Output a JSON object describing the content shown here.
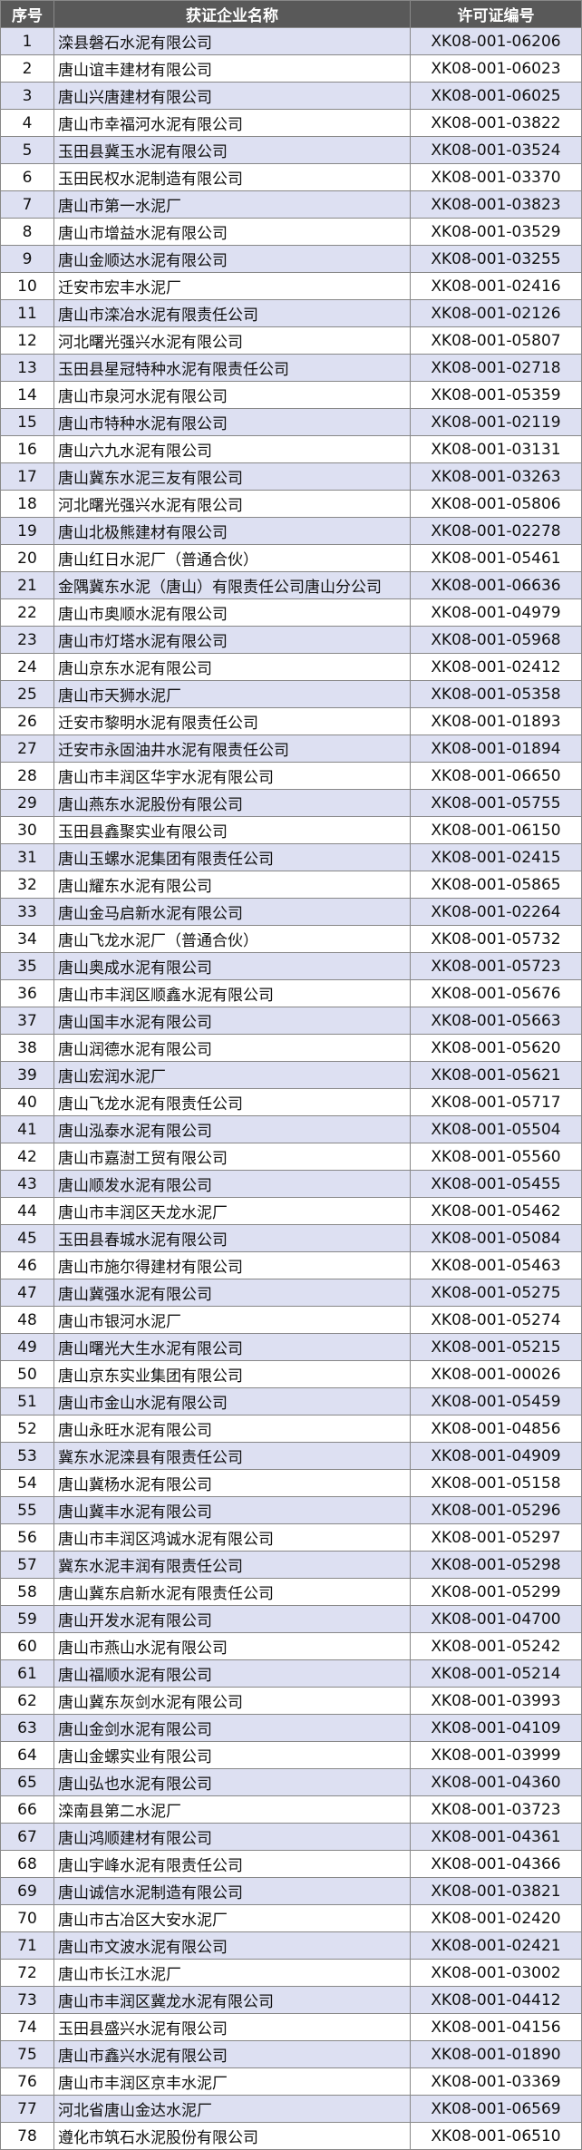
{
  "table": {
    "header": [
      "序号",
      "获证企业名称",
      "许可证编号"
    ],
    "rows": [
      [
        1,
        "滦县磐石水泥有限公司",
        "XK08-001-06206"
      ],
      [
        2,
        "唐山谊丰建材有限公司",
        "XK08-001-06023"
      ],
      [
        3,
        "唐山兴唐建材有限公司",
        "XK08-001-06025"
      ],
      [
        4,
        "唐山市幸福河水泥有限公司",
        "XK08-001-03822"
      ],
      [
        5,
        "玉田县冀玉水泥有限公司",
        "XK08-001-03524"
      ],
      [
        6,
        "玉田民权水泥制造有限公司",
        "XK08-001-03370"
      ],
      [
        7,
        "唐山市第一水泥厂",
        "XK08-001-03823"
      ],
      [
        8,
        "唐山市增益水泥有限公司",
        "XK08-001-03529"
      ],
      [
        9,
        "唐山金顺达水泥有限公司",
        "XK08-001-03255"
      ],
      [
        10,
        "迁安市宏丰水泥厂",
        "XK08-001-02416"
      ],
      [
        11,
        "唐山市滦冶水泥有限责任公司",
        "XK08-001-02126"
      ],
      [
        12,
        "河北曙光强兴水泥有限公司",
        "XK08-001-05807"
      ],
      [
        13,
        "玉田县星冠特种水泥有限责任公司",
        "XK08-001-02718"
      ],
      [
        14,
        "唐山市泉河水泥有限公司",
        "XK08-001-05359"
      ],
      [
        15,
        "唐山市特种水泥有限公司",
        "XK08-001-02119"
      ],
      [
        16,
        "唐山六九水泥有限公司",
        "XK08-001-03131"
      ],
      [
        17,
        "唐山冀东水泥三友有限公司",
        "XK08-001-03263"
      ],
      [
        18,
        "河北曙光强兴水泥有限公司",
        "XK08-001-05806"
      ],
      [
        19,
        "唐山北极熊建材有限公司",
        "XK08-001-02278"
      ],
      [
        20,
        "唐山红日水泥厂（普通合伙）",
        "XK08-001-05461"
      ],
      [
        21,
        "金隅冀东水泥（唐山）有限责任公司唐山分公司",
        "XK08-001-06636"
      ],
      [
        22,
        "唐山市奥顺水泥有限公司",
        "XK08-001-04979"
      ],
      [
        23,
        "唐山市灯塔水泥有限公司",
        "XK08-001-05968"
      ],
      [
        24,
        "唐山京东水泥有限公司",
        "XK08-001-02412"
      ],
      [
        25,
        "唐山市天狮水泥厂",
        "XK08-001-05358"
      ],
      [
        26,
        "迁安市黎明水泥有限责任公司",
        "XK08-001-01893"
      ],
      [
        27,
        "迁安市永固油井水泥有限责任公司",
        "XK08-001-01894"
      ],
      [
        28,
        "唐山市丰润区华宇水泥有限公司",
        "XK08-001-06650"
      ],
      [
        29,
        "唐山燕东水泥股份有限公司",
        "XK08-001-05755"
      ],
      [
        30,
        "玉田县鑫聚实业有限公司",
        "XK08-001-06150"
      ],
      [
        31,
        "唐山玉螺水泥集团有限责任公司",
        "XK08-001-02415"
      ],
      [
        32,
        "唐山耀东水泥有限公司",
        "XK08-001-05865"
      ],
      [
        33,
        "唐山金马启新水泥有限公司",
        "XK08-001-02264"
      ],
      [
        34,
        "唐山飞龙水泥厂（普通合伙）",
        "XK08-001-05732"
      ],
      [
        35,
        "唐山奥成水泥有限公司",
        "XK08-001-05723"
      ],
      [
        36,
        "唐山市丰润区顺鑫水泥有限公司",
        "XK08-001-05676"
      ],
      [
        37,
        "唐山国丰水泥有限公司",
        "XK08-001-05663"
      ],
      [
        38,
        "唐山润德水泥有限公司",
        "XK08-001-05620"
      ],
      [
        39,
        "唐山宏润水泥厂",
        "XK08-001-05621"
      ],
      [
        40,
        "唐山飞龙水泥有限责任公司",
        "XK08-001-05717"
      ],
      [
        41,
        "唐山泓泰水泥有限公司",
        "XK08-001-05504"
      ],
      [
        42,
        "唐山市嘉澍工贸有限公司",
        "XK08-001-05560"
      ],
      [
        43,
        "唐山顺发水泥有限公司",
        "XK08-001-05455"
      ],
      [
        44,
        "唐山市丰润区天龙水泥厂",
        "XK08-001-05462"
      ],
      [
        45,
        "玉田县春城水泥有限公司",
        "XK08-001-05084"
      ],
      [
        46,
        "唐山市施尔得建材有限公司",
        "XK08-001-05463"
      ],
      [
        47,
        "唐山冀强水泥有限公司",
        "XK08-001-05275"
      ],
      [
        48,
        "唐山市银河水泥厂",
        "XK08-001-05274"
      ],
      [
        49,
        "唐山曙光大生水泥有限公司",
        "XK08-001-05215"
      ],
      [
        50,
        "唐山京东实业集团有限公司",
        "XK08-001-00026"
      ],
      [
        51,
        "唐山市金山水泥有限公司",
        "XK08-001-05459"
      ],
      [
        52,
        "唐山永旺水泥有限公司",
        "XK08-001-04856"
      ],
      [
        53,
        "冀东水泥滦县有限责任公司",
        "XK08-001-04909"
      ],
      [
        54,
        "唐山冀杨水泥有限公司",
        "XK08-001-05158"
      ],
      [
        55,
        "唐山冀丰水泥有限公司",
        "XK08-001-05296"
      ],
      [
        56,
        "唐山市丰润区鸿诚水泥有限公司",
        "XK08-001-05297"
      ],
      [
        57,
        "冀东水泥丰润有限责任公司",
        "XK08-001-05298"
      ],
      [
        58,
        "唐山冀东启新水泥有限责任公司",
        "XK08-001-05299"
      ],
      [
        59,
        "唐山开发水泥有限公司",
        "XK08-001-04700"
      ],
      [
        60,
        "唐山市燕山水泥有限公司",
        "XK08-001-05242"
      ],
      [
        61,
        "唐山福顺水泥有限公司",
        "XK08-001-05214"
      ],
      [
        62,
        "唐山冀东灰剑水泥有限公司",
        "XK08-001-03993"
      ],
      [
        63,
        "唐山金剑水泥有限公司",
        "XK08-001-04109"
      ],
      [
        64,
        "唐山金螺实业有限公司",
        "XK08-001-03999"
      ],
      [
        65,
        "唐山弘也水泥有限公司",
        "XK08-001-04360"
      ],
      [
        66,
        "滦南县第二水泥厂",
        "XK08-001-03723"
      ],
      [
        67,
        "唐山鸿顺建材有限公司",
        "XK08-001-04361"
      ],
      [
        68,
        "唐山宇峰水泥有限责任公司",
        "XK08-001-04366"
      ],
      [
        69,
        "唐山诚信水泥制造有限公司",
        "XK08-001-03821"
      ],
      [
        70,
        "唐山市古冶区大安水泥厂",
        "XK08-001-02420"
      ],
      [
        71,
        "唐山市文波水泥有限公司",
        "XK08-001-02421"
      ],
      [
        72,
        "唐山市长江水泥厂",
        "XK08-001-03002"
      ],
      [
        73,
        "唐山市丰润区冀龙水泥有限公司",
        "XK08-001-04412"
      ],
      [
        74,
        "玉田县盛兴水泥有限公司",
        "XK08-001-04156"
      ],
      [
        75,
        "唐山市鑫兴水泥有限公司",
        "XK08-001-01890"
      ],
      [
        76,
        "唐山市丰润区京丰水泥厂",
        "XK08-001-03369"
      ],
      [
        77,
        "河北省唐山金达水泥厂",
        "XK08-001-06569"
      ],
      [
        78,
        "遵化市筑石水泥股份有限公司",
        "XK08-001-06510"
      ]
    ]
  }
}
